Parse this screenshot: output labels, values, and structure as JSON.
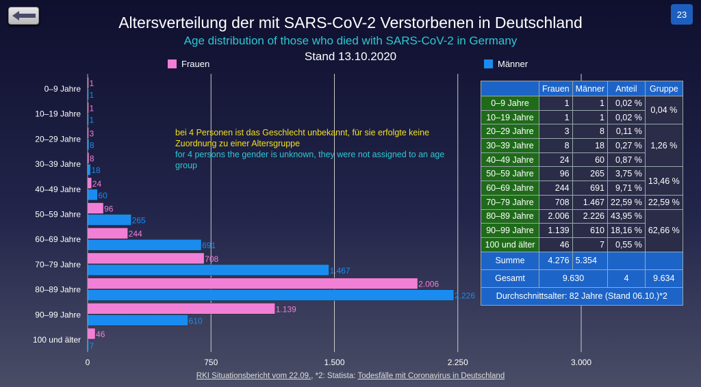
{
  "header": {
    "title": "Altersverteilung der mit SARS-CoV-2 Verstorbenen in Deutschland",
    "subtitle": "Age distribution of those who died with SARS-CoV-2 in Germany",
    "date": "Stand 13.10.2020",
    "page_number": "23",
    "back_icon": "arrow-left-icon"
  },
  "colors": {
    "frauen": "#f27fd6",
    "maenner": "#1a8cf0",
    "table_label": "#1f6b1a",
    "table_blue": "#1d64c8",
    "subtitle": "#2fc7d1"
  },
  "note": {
    "de": "bei 4 Personen ist das Geschlecht unbekannt, für sie erfolgte keine Zuordnung zu einer Altersgruppe",
    "en": "for 4 persons the gender is unknown, they were not assigned to an age group"
  },
  "chart_data": {
    "type": "bar",
    "orientation": "horizontal",
    "title": "Altersverteilung der mit SARS-CoV-2 Verstorbenen in Deutschland",
    "categories": [
      "0–9 Jahre",
      "10–19 Jahre",
      "20–29 Jahre",
      "30–39 Jahre",
      "40–49 Jahre",
      "50–59 Jahre",
      "60–69 Jahre",
      "70–79 Jahre",
      "80–89 Jahre",
      "90–99 Jahre",
      "100 und älter"
    ],
    "series": [
      {
        "name": "Frauen",
        "values": [
          1,
          1,
          3,
          8,
          24,
          96,
          244,
          708,
          2006,
          1139,
          46
        ],
        "labels": [
          "1",
          "1",
          "3",
          "8",
          "24",
          "96",
          "244",
          "708",
          "2.006",
          "1.139",
          "46"
        ]
      },
      {
        "name": "Männer",
        "values": [
          1,
          1,
          8,
          18,
          60,
          265,
          691,
          1467,
          2226,
          610,
          7
        ],
        "labels": [
          "1",
          "1",
          "8",
          "18",
          "60",
          "265",
          "691",
          "1.467",
          "2.226",
          "610",
          "7"
        ]
      }
    ],
    "xlim": [
      0,
      3000
    ],
    "xticks": [
      0,
      750,
      1500,
      2250,
      3000
    ],
    "xtick_labels": [
      "0",
      "750",
      "1.500",
      "2.250",
      "3.000"
    ],
    "grid": true,
    "legend": "top"
  },
  "table": {
    "headers": [
      "",
      "Frauen",
      "Männer",
      "Anteil",
      "Gruppe"
    ],
    "rows": [
      [
        "0–9 Jahre",
        "1",
        "1",
        "0,02 %"
      ],
      [
        "10–19 Jahre",
        "1",
        "1",
        "0,02 %"
      ],
      [
        "20–29 Jahre",
        "3",
        "8",
        "0,11 %"
      ],
      [
        "30–39 Jahre",
        "8",
        "18",
        "0,27 %"
      ],
      [
        "40–49 Jahre",
        "24",
        "60",
        "0,87 %"
      ],
      [
        "50–59 Jahre",
        "96",
        "265",
        "3,75 %"
      ],
      [
        "60–69 Jahre",
        "244",
        "691",
        "9,71 %"
      ],
      [
        "70–79 Jahre",
        "708",
        "1.467",
        "22,59 %"
      ],
      [
        "80–89 Jahre",
        "2.006",
        "2.226",
        "43,95 %"
      ],
      [
        "90–99 Jahre",
        "1.139",
        "610",
        "18,16 %"
      ],
      [
        "100 und älter",
        "46",
        "7",
        "0,55 %"
      ]
    ],
    "groups": [
      "0,04 %",
      "1,26 %",
      "13,46 %",
      "22,59 %",
      "62,66 %"
    ],
    "summe": {
      "label": "Summe",
      "frauen": "4.276",
      "maenner": "5.354"
    },
    "gesamt": {
      "label": "Gesamt",
      "known": "9.630",
      "unknown": "4",
      "total": "9.634"
    },
    "durchschnitt": "Durchschnittsalter: 82 Jahre (Stand 06.10.)*2"
  },
  "source": {
    "link1": "RKI Situationsbericht vom 22.09.",
    "mid": ", *2: Statista: ",
    "link2": "Todesfälle mit Coronavirus in Deutschland"
  }
}
